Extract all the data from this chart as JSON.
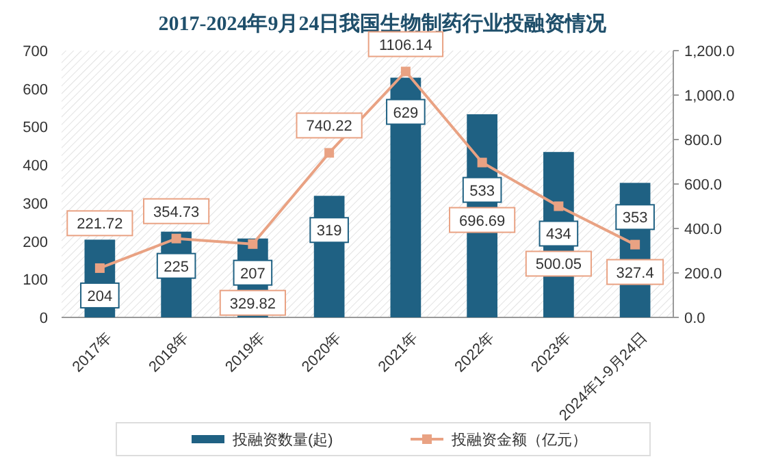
{
  "chart_data": {
    "type": "bar",
    "title": "2017-2024年9月24日我国生物制药行业投融资情况",
    "categories": [
      "2017年",
      "2018年",
      "2019年",
      "2020年",
      "2021年",
      "2022年",
      "2023年",
      "2024年1-9月24日"
    ],
    "series": [
      {
        "name": "投融资数量(起)",
        "color": "#1f6183",
        "values": [
          204,
          225,
          207,
          319,
          629,
          533,
          434,
          353
        ]
      },
      {
        "name": "投融资金额（亿元）",
        "type": "line",
        "axis": "y2",
        "color": "#e9a283",
        "marker": "square",
        "values": [
          221.72,
          354.73,
          329.82,
          740.22,
          1106.14,
          696.69,
          500.05,
          327.4
        ]
      }
    ],
    "ylim": [
      0,
      700
    ],
    "yticks": [
      0,
      100,
      200,
      300,
      400,
      500,
      600,
      700
    ],
    "y2lim": [
      0,
      1200
    ],
    "y2ticks": [
      {
        "value": 0,
        "label": "0.0"
      },
      {
        "value": 200,
        "label": "200.0"
      },
      {
        "value": 400,
        "label": "400.0"
      },
      {
        "value": 600,
        "label": "600.0"
      },
      {
        "value": 800,
        "label": "800.0"
      },
      {
        "value": 1000,
        "label": "1,000.0"
      },
      {
        "value": 1200,
        "label": "1,200.0"
      }
    ],
    "data_labels": true,
    "legend": "bottom",
    "grid": false
  }
}
